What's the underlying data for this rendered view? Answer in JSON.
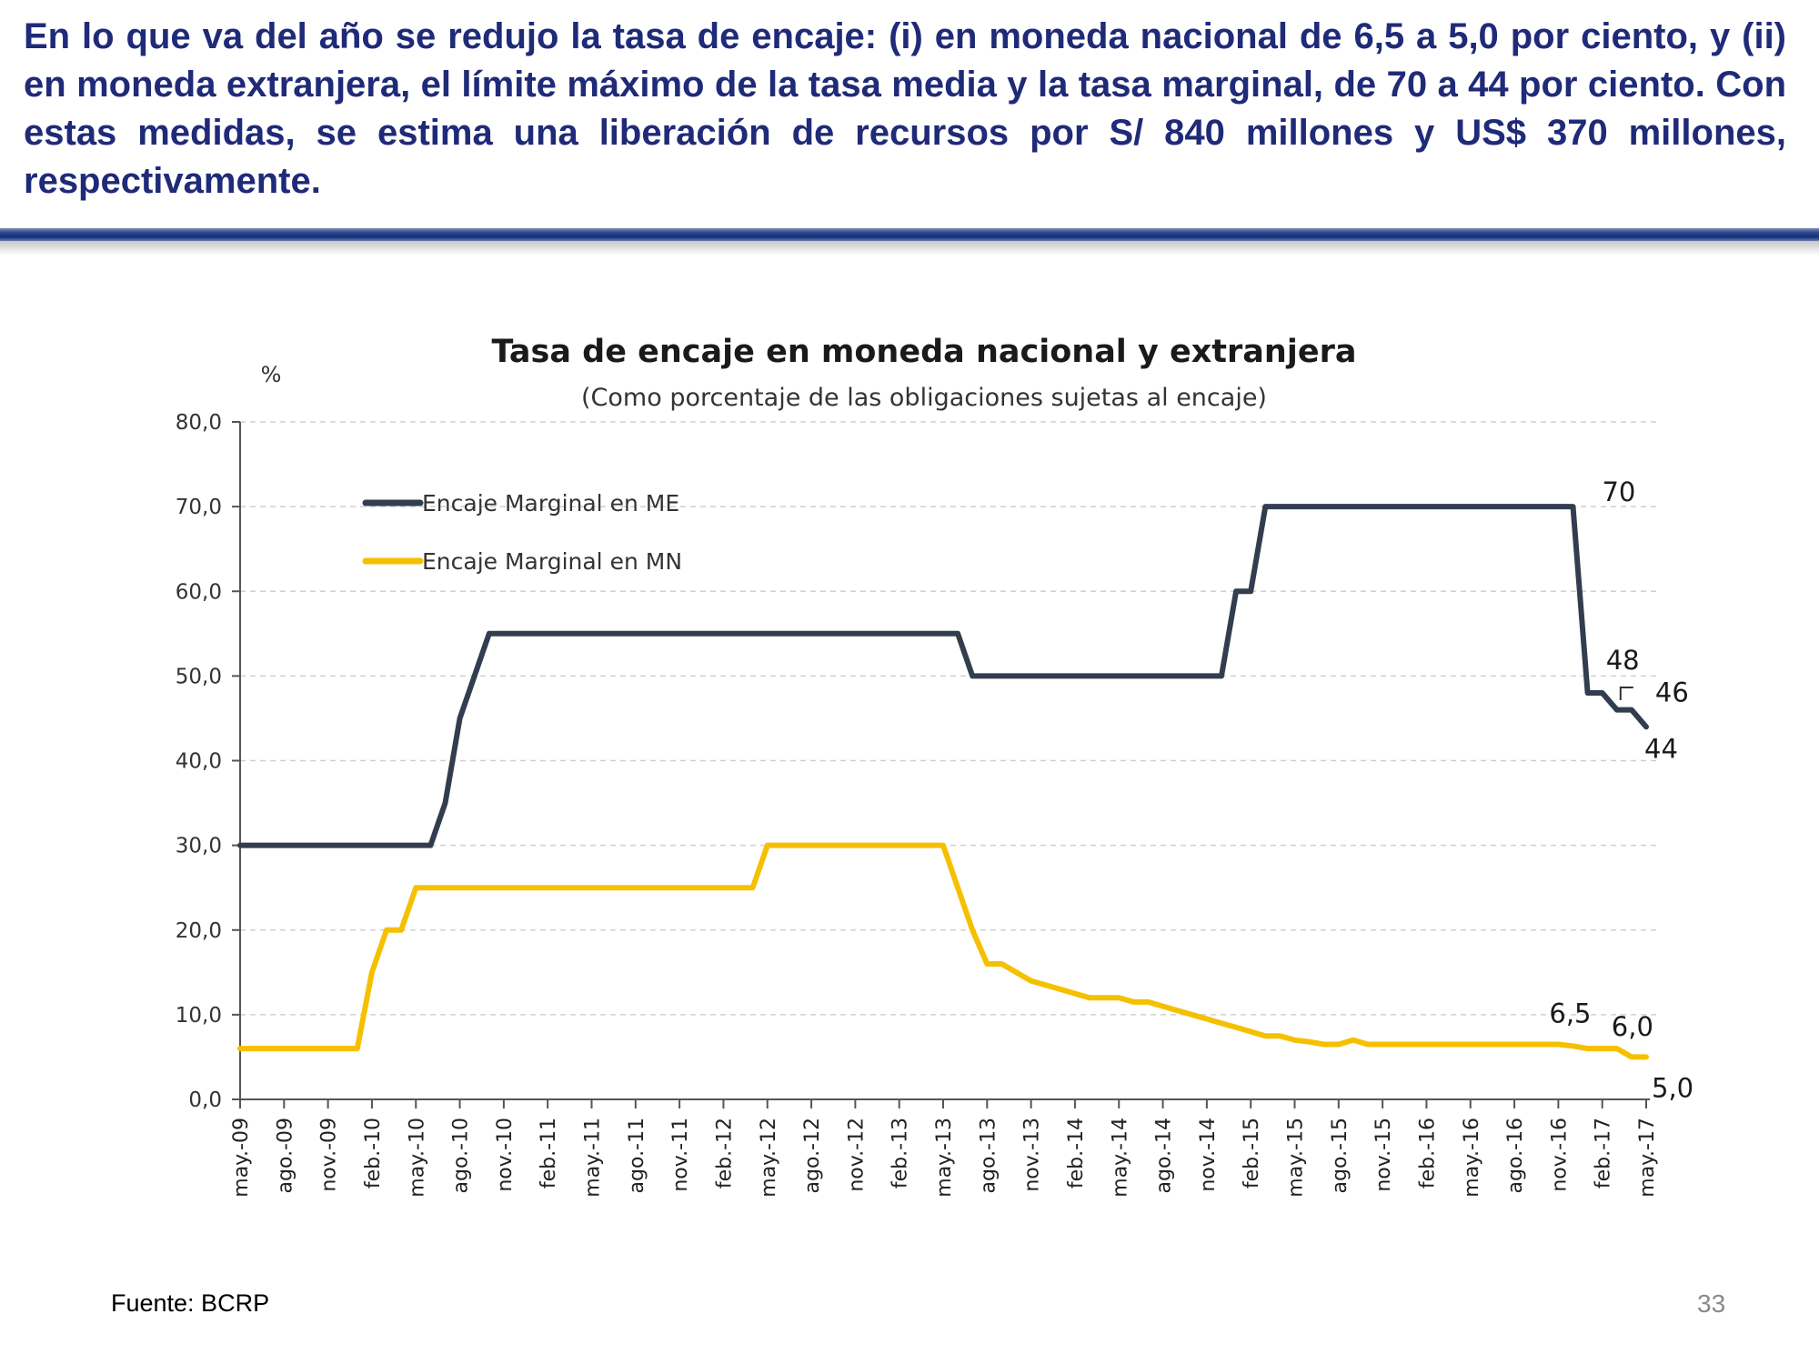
{
  "slide": {
    "headline": "En lo que va del año se redujo la tasa de encaje: (i) en moneda nacional de 6,5 a 5,0 por ciento, y (ii) en moneda extranjera, el límite máximo de la tasa media y la tasa marginal, de 70 a 44 por ciento. Con estas medidas, se estima una liberación de recursos por S/ 840 millones y US$ 370 millones, respectivamente.",
    "source": "Fuente: BCRP",
    "page_number": "33"
  },
  "chart_data": {
    "type": "line",
    "title": "Tasa de encaje en moneda nacional y extranjera",
    "subtitle": "(Como porcentaje de las obligaciones sujetas al encaje)",
    "ylabel": "%",
    "xlabel": "",
    "ylim": [
      0,
      80
    ],
    "xlim": [
      "2009-05",
      "2017-05"
    ],
    "yticks": [
      0,
      10,
      20,
      30,
      40,
      50,
      60,
      70,
      80
    ],
    "ytick_labels": [
      "0,0",
      "10,0",
      "20,0",
      "30,0",
      "40,0",
      "50,0",
      "60,0",
      "70,0",
      "80,0"
    ],
    "xticks": [
      "2009-05",
      "2009-08",
      "2009-11",
      "2010-02",
      "2010-05",
      "2010-08",
      "2010-11",
      "2011-02",
      "2011-05",
      "2011-08",
      "2011-11",
      "2012-02",
      "2012-05",
      "2012-08",
      "2012-11",
      "2013-02",
      "2013-05",
      "2013-08",
      "2013-11",
      "2014-02",
      "2014-05",
      "2014-08",
      "2014-11",
      "2015-02",
      "2015-05",
      "2015-08",
      "2015-11",
      "2016-02",
      "2016-05",
      "2016-08",
      "2016-11",
      "2017-02",
      "2017-05"
    ],
    "xtick_labels": [
      "may.-09",
      "ago.-09",
      "nov.-09",
      "feb.-10",
      "may.-10",
      "ago.-10",
      "nov.-10",
      "feb.-11",
      "may.-11",
      "ago.-11",
      "nov.-11",
      "feb.-12",
      "may.-12",
      "ago.-12",
      "nov.-12",
      "feb.-13",
      "may.-13",
      "ago.-13",
      "nov.-13",
      "feb.-14",
      "may.-14",
      "ago.-14",
      "nov.-14",
      "feb.-15",
      "may.-15",
      "ago.-15",
      "nov.-15",
      "feb.-16",
      "may.-16",
      "ago.-16",
      "nov.-16",
      "feb.-17",
      "may.-17"
    ],
    "grid": "horizontal dashed",
    "legend_position": "top-left",
    "series": [
      {
        "name": "Encaje Marginal en ME",
        "color": "#323d4f",
        "x": [
          "2009-05",
          "2010-06",
          "2010-07",
          "2010-08",
          "2010-09",
          "2010-10",
          "2010-11",
          "2013-06",
          "2013-07",
          "2014-12",
          "2015-01",
          "2015-02",
          "2015-03",
          "2016-12",
          "2017-01",
          "2017-02",
          "2017-03",
          "2017-04",
          "2017-05"
        ],
        "values": [
          30,
          30,
          35,
          45,
          50,
          55,
          55,
          55,
          50,
          50,
          60,
          60,
          70,
          70,
          48,
          48,
          46,
          46,
          44
        ]
      },
      {
        "name": "Encaje Marginal en MN",
        "color": "#f5c000",
        "x": [
          "2009-05",
          "2010-01",
          "2010-02",
          "2010-03",
          "2010-04",
          "2010-05",
          "2012-04",
          "2012-05",
          "2013-05",
          "2013-06",
          "2013-07",
          "2013-08",
          "2013-09",
          "2013-10",
          "2013-11",
          "2014-01",
          "2014-02",
          "2014-03",
          "2014-04",
          "2014-05",
          "2014-06",
          "2014-07",
          "2014-08",
          "2014-09",
          "2014-10",
          "2014-11",
          "2014-12",
          "2015-01",
          "2015-02",
          "2015-03",
          "2015-04",
          "2015-05",
          "2015-06",
          "2015-07",
          "2015-08",
          "2015-09",
          "2015-10",
          "2015-11",
          "2016-02",
          "2016-05",
          "2016-08",
          "2016-11",
          "2016-12",
          "2017-01",
          "2017-02",
          "2017-03",
          "2017-04",
          "2017-05"
        ],
        "values": [
          6,
          6,
          15,
          20,
          20,
          25,
          25,
          30,
          30,
          25,
          20,
          16,
          16,
          15,
          14,
          13,
          12.5,
          12,
          12,
          12,
          11.5,
          11.5,
          11,
          10.5,
          10,
          9.5,
          9,
          8.5,
          8,
          7.5,
          7.5,
          7,
          6.8,
          6.5,
          6.5,
          7,
          6.5,
          6.5,
          6.5,
          6.5,
          6.5,
          6.5,
          6.3,
          6,
          6,
          6,
          5,
          5
        ]
      }
    ],
    "annotations": [
      {
        "text": "70",
        "series": "Encaje Marginal en ME",
        "at": "2016-12",
        "value": 70
      },
      {
        "text": "48",
        "series": "Encaje Marginal en ME",
        "at": "2017-02",
        "value": 48
      },
      {
        "text": "46",
        "series": "Encaje Marginal en ME",
        "at": "2017-04",
        "value": 46
      },
      {
        "text": "44",
        "series": "Encaje Marginal en ME",
        "at": "2017-05",
        "value": 44
      },
      {
        "text": "6,5",
        "series": "Encaje Marginal en MN",
        "at": "2016-11",
        "value": 6.5
      },
      {
        "text": "6,0",
        "series": "Encaje Marginal en MN",
        "at": "2017-03",
        "value": 6
      },
      {
        "text": "5,0",
        "series": "Encaje Marginal en MN",
        "at": "2017-05",
        "value": 5
      }
    ]
  }
}
